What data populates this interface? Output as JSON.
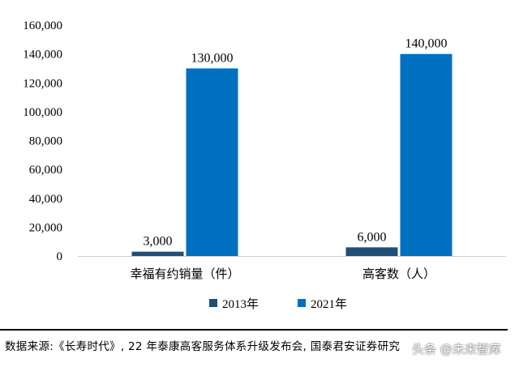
{
  "chart_data": {
    "type": "bar",
    "categories": [
      "幸福有约销量（件）",
      "高客数（人）"
    ],
    "series": [
      {
        "name": "2013年",
        "values": [
          3000,
          6000
        ],
        "value_labels": [
          "3,000",
          "6,000"
        ],
        "color": "#1f4e79"
      },
      {
        "name": "2021年",
        "values": [
          130000,
          140000
        ],
        "value_labels": [
          "130,000",
          "140,000"
        ],
        "color": "#0070c0"
      }
    ],
    "ylim": [
      0,
      160000
    ],
    "yticks": [
      "0",
      "20,000",
      "40,000",
      "60,000",
      "80,000",
      "100,000",
      "120,000",
      "140,000",
      "160,000"
    ],
    "grid": false,
    "legend_position": "bottom"
  },
  "source_text": "数据来源:《长寿时代》, 22 年泰康高客服务体系升级发布会, 国泰君安证券研究",
  "watermark_text": "头条 @未来智库"
}
